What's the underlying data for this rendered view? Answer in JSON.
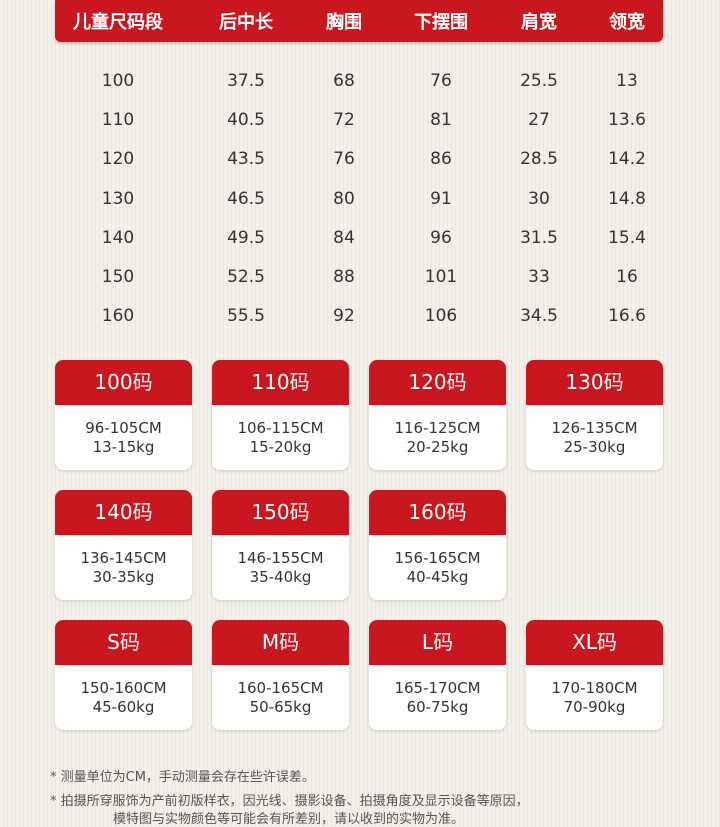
{
  "table": {
    "headers": [
      "儿童尺码段",
      "后中长",
      "胸围",
      "下摆围",
      "肩宽",
      "领宽"
    ],
    "rows": [
      [
        "100",
        "37.5",
        "68",
        "76",
        "25.5",
        "13"
      ],
      [
        "110",
        "40.5",
        "72",
        "81",
        "27",
        "13.6"
      ],
      [
        "120",
        "43.5",
        "76",
        "86",
        "28.5",
        "14.2"
      ],
      [
        "130",
        "46.5",
        "80",
        "91",
        "30",
        "14.8"
      ],
      [
        "140",
        "49.5",
        "84",
        "96",
        "31.5",
        "15.4"
      ],
      [
        "150",
        "52.5",
        "88",
        "101",
        "33",
        "16"
      ],
      [
        "160",
        "55.5",
        "92",
        "106",
        "34.5",
        "16.6"
      ]
    ]
  },
  "size_cards": [
    {
      "size": "100码",
      "height": "96-105CM",
      "weight": "13-15kg"
    },
    {
      "size": "110码",
      "height": "106-115CM",
      "weight": "15-20kg"
    },
    {
      "size": "120码",
      "height": "116-125CM",
      "weight": "20-25kg"
    },
    {
      "size": "130码",
      "height": "126-135CM",
      "weight": "25-30kg"
    },
    {
      "size": "140码",
      "height": "136-145CM",
      "weight": "30-35kg"
    },
    {
      "size": "150码",
      "height": "146-155CM",
      "weight": "35-40kg"
    },
    {
      "size": "160码",
      "height": "156-165CM",
      "weight": "40-45kg"
    },
    {
      "size": "S码",
      "height": "150-160CM",
      "weight": "45-60kg"
    },
    {
      "size": "M码",
      "height": "160-165CM",
      "weight": "50-65kg"
    },
    {
      "size": "L码",
      "height": "165-170CM",
      "weight": "60-75kg"
    },
    {
      "size": "XL码",
      "height": "170-180CM",
      "weight": "70-90kg"
    }
  ],
  "notes": [
    "* 测量单位为CM，手动测量会存在些许误差。",
    "* 拍摄所穿服饰为产前初版样衣，因光线、摄影设备、拍摄角度及显示设备等原因，",
    "模特图与实物颜色等可能会有所差别，请以收到的实物为准。"
  ]
}
